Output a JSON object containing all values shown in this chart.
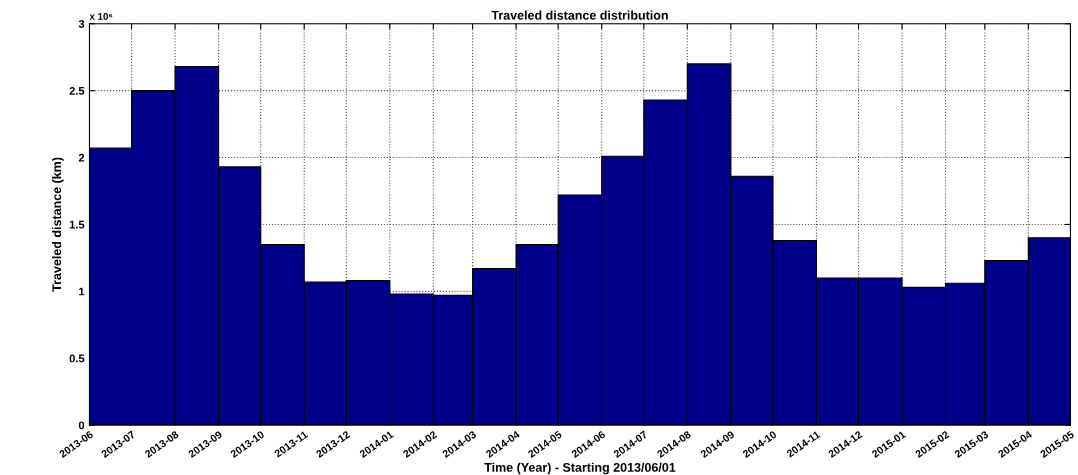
{
  "chart_data": {
    "type": "histogram",
    "title": "Traveled distance distribution",
    "xlabel": "Time (Year) - Starting 2013/06/01",
    "ylabel": "Traveled distance (km)",
    "bins": [
      "2013-06",
      "2013-07",
      "2013-08",
      "2013-09",
      "2013-10",
      "2013-11",
      "2013-12",
      "2014-01",
      "2014-02",
      "2014-03",
      "2014-04",
      "2014-05",
      "2014-06",
      "2014-07",
      "2014-08",
      "2014-09",
      "2014-10",
      "2014-11",
      "2014-12",
      "2015-01",
      "2015-02",
      "2015-03",
      "2015-04",
      "2015-05"
    ],
    "values": [
      2.07,
      2.5,
      2.68,
      1.93,
      1.35,
      1.07,
      1.08,
      0.98,
      0.97,
      1.17,
      1.35,
      1.72,
      2.01,
      2.43,
      2.7,
      1.86,
      1.38,
      1.1,
      1.1,
      1.03,
      1.06,
      1.23,
      1.4
    ],
    "color": "#00008b",
    "xlim": [
      "2013-06",
      "2015-05"
    ],
    "xticks": [
      "2013-06",
      "2013-07",
      "2013-08",
      "2013-09",
      "2013-10",
      "2013-11",
      "2013-12",
      "2014-01",
      "2014-02",
      "2014-03",
      "2014-04",
      "2014-05",
      "2014-06",
      "2014-07",
      "2014-08",
      "2014-09",
      "2014-10",
      "2014-11",
      "2014-12",
      "2015-01",
      "2015-02",
      "2015-03",
      "2015-04",
      "2015-05"
    ],
    "ylim": [
      0,
      3
    ],
    "yticks": [
      0,
      0.5,
      1,
      1.5,
      2,
      2.5,
      3
    ],
    "annotations": [
      "x 10⁶"
    ],
    "grid": true,
    "line_style": "dotted"
  }
}
